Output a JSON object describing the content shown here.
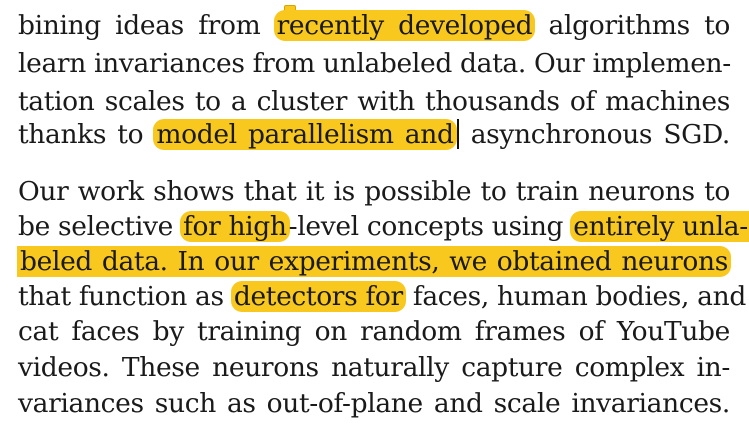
{
  "document": {
    "paragraph1": {
      "line1": {
        "t1": "bining ideas from ",
        "h1": "recently developed",
        "t2": " algorithms to"
      },
      "line2": {
        "t1": "learn invariances from unlabeled data. Our implemen-"
      },
      "line3": {
        "t1": "tation scales to a cluster with thousands of machines"
      },
      "line4": {
        "t1": "thanks to ",
        "h1": "model parallelism and",
        "t2": " asynchronous SGD."
      }
    },
    "paragraph2": {
      "line1": {
        "t1": "Our work shows that it is possible to train neurons to"
      },
      "line2": {
        "t1": "be selective ",
        "h1": "for high",
        "t2": "-level concepts using ",
        "h2": "entirely unla-"
      },
      "line3": {
        "h1": "beled data.  In our experiments, we obtained neurons"
      },
      "line4": {
        "t1": "that function as ",
        "h1": "detectors for",
        "t2": " faces, human bodies, and"
      },
      "line5": {
        "t1": "cat faces by training on random frames of YouTube"
      },
      "line6": {
        "t1": "videos.  These neurons naturally capture complex in-"
      },
      "line7": {
        "t1": "variances such as out-of-plane and scale invariances."
      }
    }
  },
  "colors": {
    "highlight": "#f8c81e",
    "text": "#1a1a1a",
    "background": "#ffffff"
  },
  "icons": {
    "annotation_marker": "note-marker-icon",
    "text_cursor": "text-cursor"
  }
}
